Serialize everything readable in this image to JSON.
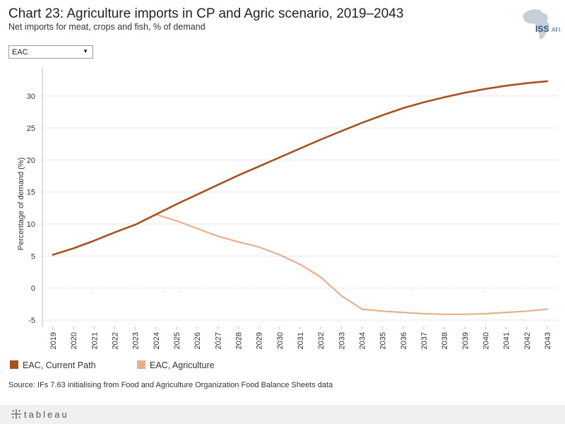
{
  "header": {
    "title": "Chart 23: Agriculture imports in CP and Agric scenario, 2019–2043",
    "subtitle": "Net imports for meat, crops and fish, % of demand",
    "logo_text": "ISS",
    "logo_subtext": "AFI"
  },
  "filter": {
    "selected": "EAC"
  },
  "legend": [
    {
      "label": "EAC, Current Path",
      "color": "#a8521f"
    },
    {
      "label": "EAC, Agriculture",
      "color": "#e8b08a"
    }
  ],
  "source": "Source: IFs 7.63 initialising from Food and Agriculture Organization Food Balance Sheets data",
  "footer": {
    "brand": "tableau"
  },
  "colors": {
    "current_path": "#a8521f",
    "agriculture": "#e8b08a",
    "grid": "#e6e6e6",
    "zero": "#c8c8c8"
  },
  "chart_data": {
    "type": "line",
    "title": "Chart 23: Agriculture imports in CP and Agric scenario, 2019–2043",
    "subtitle": "Net imports for meat, crops and fish, % of demand",
    "xlabel": "",
    "ylabel": "Percentage of demand (%)",
    "ylim": [
      -6,
      34.5
    ],
    "yticks": [
      -5,
      0,
      5,
      10,
      15,
      20,
      25,
      30
    ],
    "grid": true,
    "legend_position": "bottom",
    "x": [
      2019,
      2020,
      2021,
      2022,
      2023,
      2024,
      2025,
      2026,
      2027,
      2028,
      2029,
      2030,
      2031,
      2032,
      2033,
      2034,
      2035,
      2036,
      2037,
      2038,
      2039,
      2040,
      2041,
      2042,
      2043
    ],
    "series": [
      {
        "name": "EAC, Current Path",
        "values": [
          5.2,
          6.2,
          7.4,
          8.7,
          9.9,
          11.5,
          13.1,
          14.6,
          16.1,
          17.6,
          19.0,
          20.4,
          21.8,
          23.2,
          24.5,
          25.8,
          27.0,
          28.1,
          29.0,
          29.8,
          30.5,
          31.1,
          31.6,
          32.0,
          32.3
        ]
      },
      {
        "name": "EAC, Agriculture",
        "values": [
          5.2,
          6.2,
          7.4,
          8.7,
          9.9,
          11.5,
          10.5,
          9.3,
          8.1,
          7.2,
          6.4,
          5.2,
          3.7,
          1.7,
          -1.2,
          -3.3,
          -3.6,
          -3.8,
          -4.0,
          -4.1,
          -4.1,
          -4.0,
          -3.8,
          -3.6,
          -3.3
        ]
      }
    ]
  }
}
